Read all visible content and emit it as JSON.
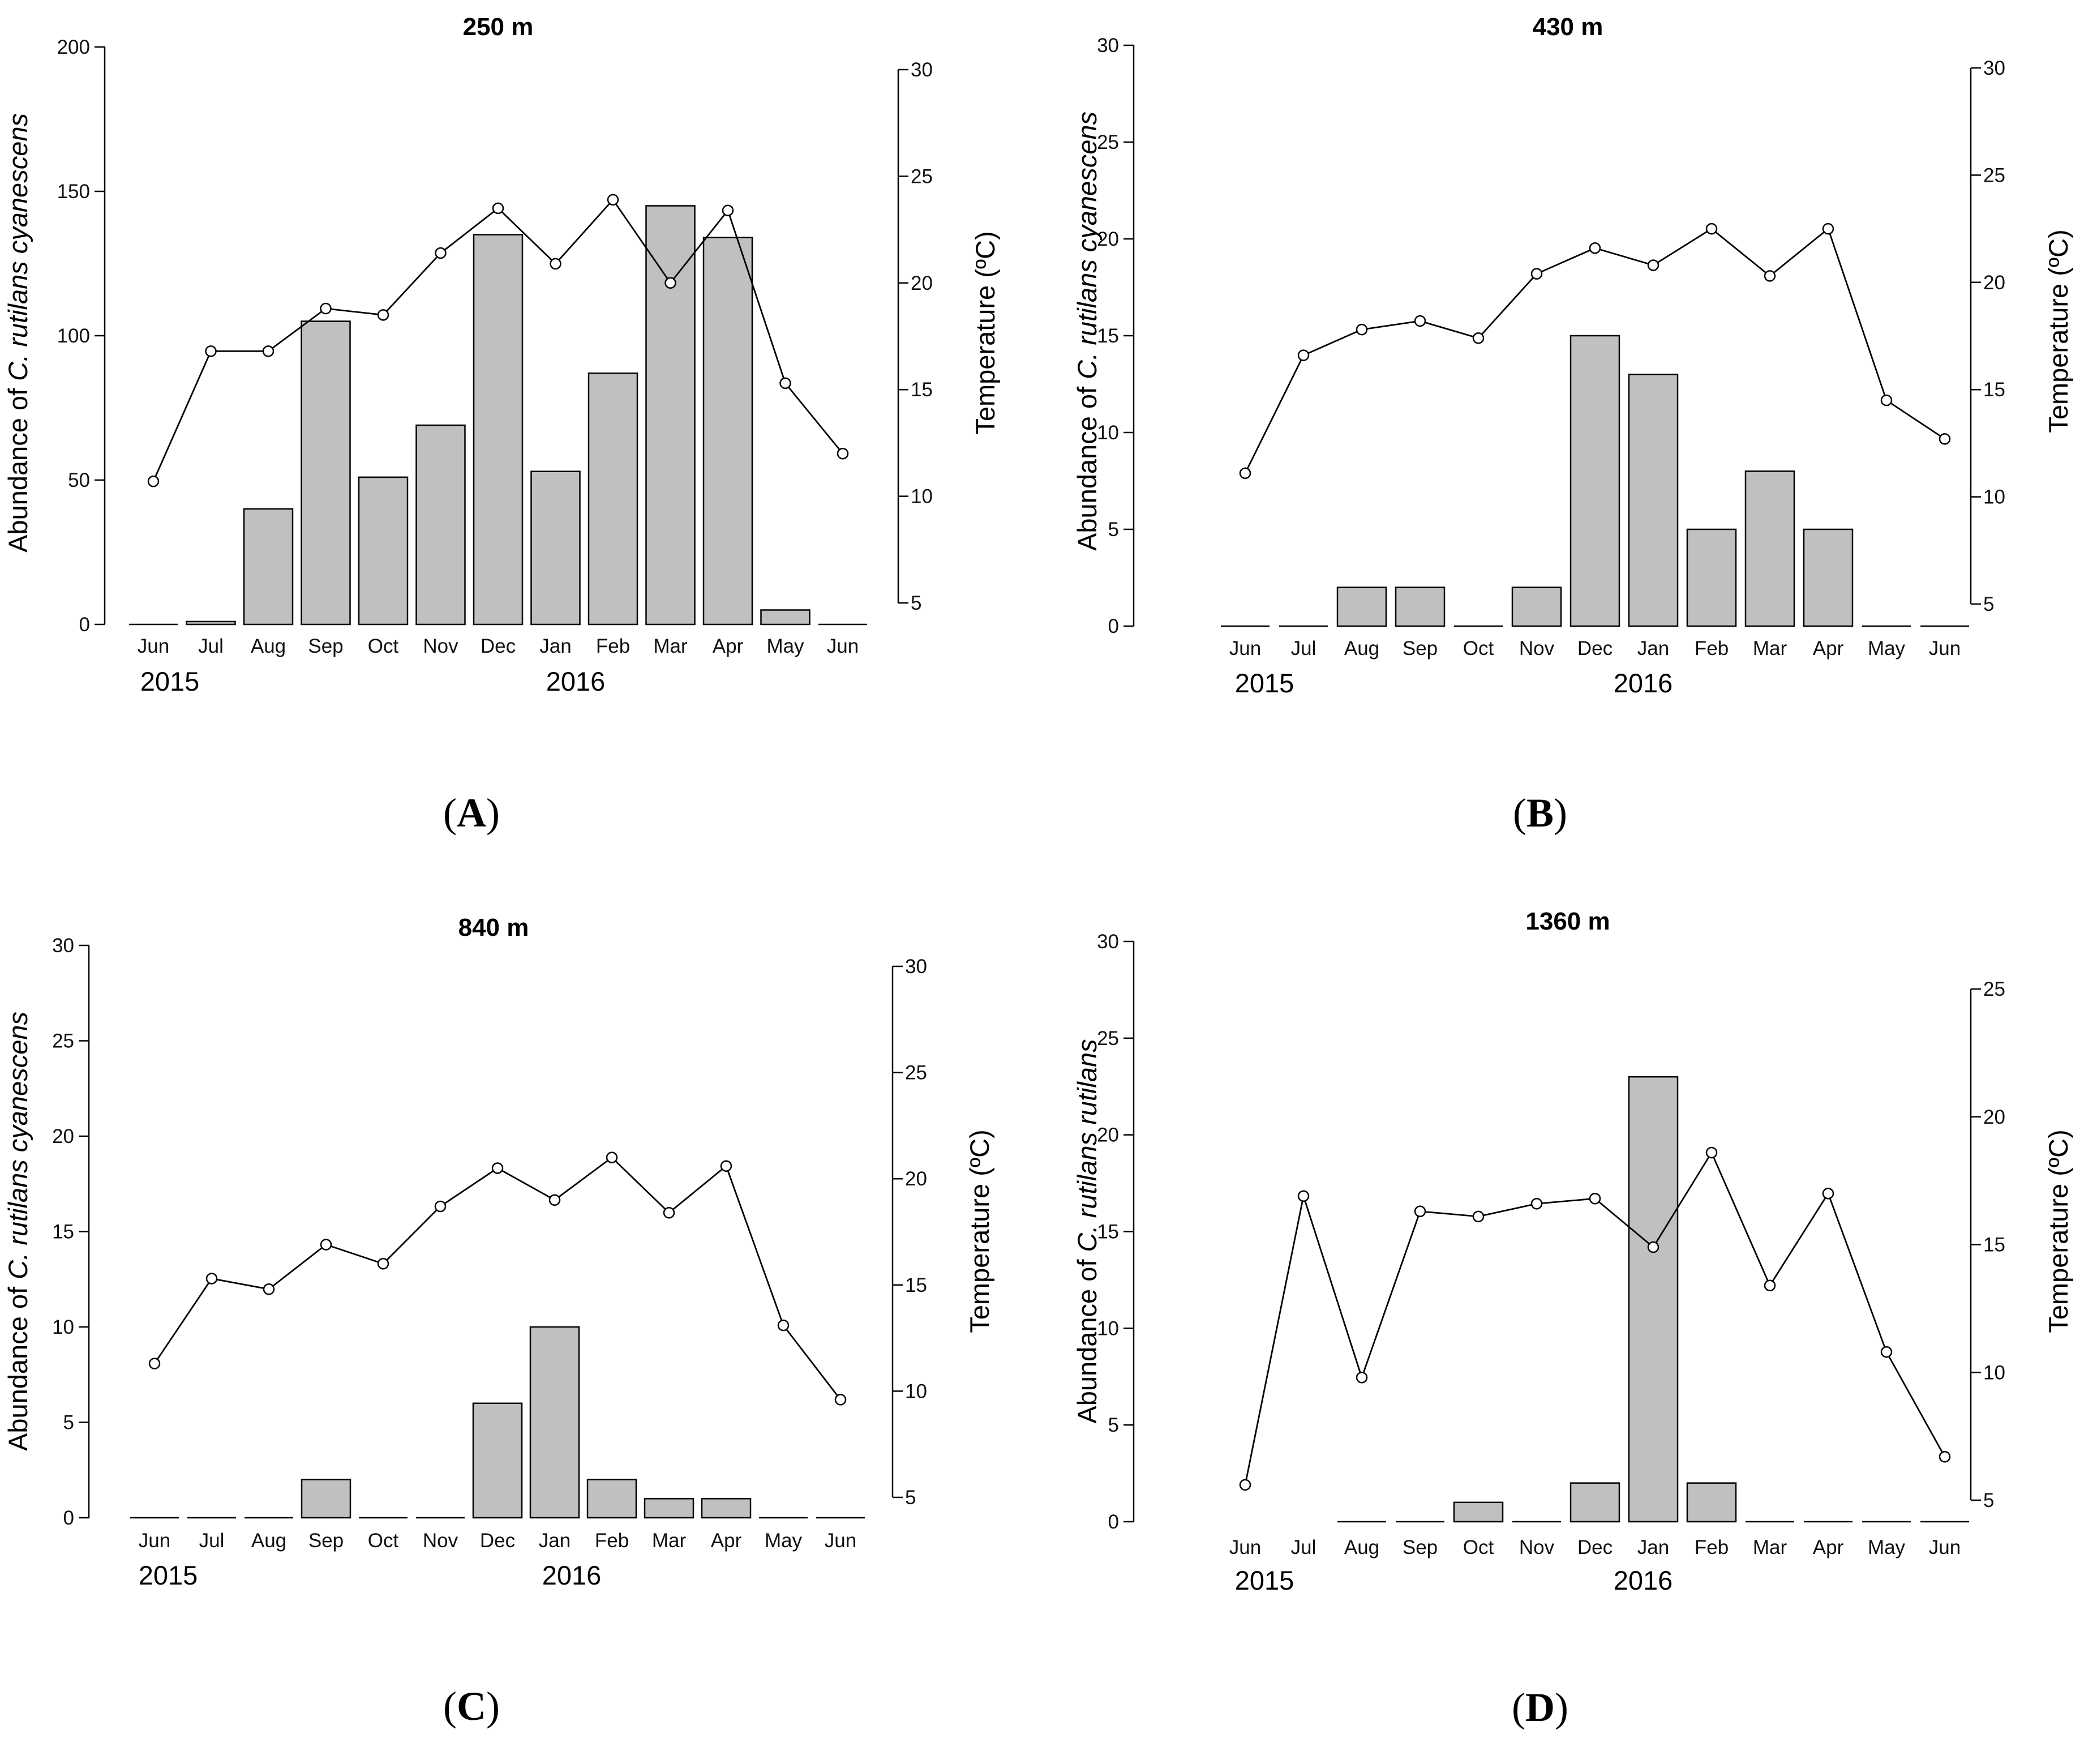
{
  "chart_data": [
    {
      "type": "bar",
      "panel_label": "A",
      "title": "250 m",
      "ylabel_prefix": "Abundance of ",
      "ylabel_species": "C. rutilans cyanescens",
      "y2label": "Temperature (ºC)",
      "categories": [
        "Jun",
        "Jul",
        "Aug",
        "Sep",
        "Oct",
        "Nov",
        "Dec",
        "Jan",
        "Feb",
        "Mar",
        "Apr",
        "May",
        "Jun"
      ],
      "years": [
        "2015",
        "2016"
      ],
      "ylim": [
        0,
        200
      ],
      "yticks": [
        "0",
        "50",
        "100",
        "150",
        "200"
      ],
      "y2lim": [
        5,
        30
      ],
      "y2ticks": [
        "5",
        "10",
        "15",
        "20",
        "25",
        "30"
      ],
      "series": [
        {
          "name": "Abundance",
          "kind": "bar",
          "values": [
            0,
            1,
            40,
            105,
            51,
            69,
            135,
            53,
            87,
            145,
            134,
            5,
            0
          ]
        },
        {
          "name": "Temperature",
          "kind": "line",
          "values": [
            10.7,
            16.8,
            16.8,
            18.8,
            18.5,
            21.4,
            23.5,
            20.9,
            23.9,
            20.0,
            23.4,
            15.3,
            12.0
          ]
        }
      ]
    },
    {
      "type": "bar",
      "panel_label": "B",
      "title": "430 m",
      "ylabel_prefix": "Abundance of ",
      "ylabel_species": "C. rutilans cyanescens",
      "y2label": "Temperature (ºC)",
      "categories": [
        "Jun",
        "Jul",
        "Aug",
        "Sep",
        "Oct",
        "Nov",
        "Dec",
        "Jan",
        "Feb",
        "Mar",
        "Apr",
        "May",
        "Jun"
      ],
      "years": [
        "2015",
        "2016"
      ],
      "ylim": [
        0,
        30
      ],
      "yticks": [
        "0",
        "5",
        "10",
        "15",
        "20",
        "25",
        "30"
      ],
      "y2lim": [
        5,
        30
      ],
      "y2ticks": [
        "5",
        "10",
        "15",
        "20",
        "25",
        "30"
      ],
      "series": [
        {
          "name": "Abundance",
          "kind": "bar",
          "values": [
            0,
            0,
            2,
            2,
            0,
            2,
            15,
            13,
            5,
            8,
            5,
            0,
            0
          ]
        },
        {
          "name": "Temperature",
          "kind": "line",
          "values": [
            11.1,
            16.6,
            17.8,
            18.2,
            17.4,
            20.4,
            21.6,
            20.8,
            22.5,
            20.3,
            22.5,
            14.5,
            12.7
          ]
        }
      ]
    },
    {
      "type": "bar",
      "panel_label": "C",
      "title": "840 m",
      "ylabel_prefix": "Abundance of ",
      "ylabel_species": "C. rutilans cyanescens",
      "y2label": "Temperature (ºC)",
      "categories": [
        "Jun",
        "Jul",
        "Aug",
        "Sep",
        "Oct",
        "Nov",
        "Dec",
        "Jan",
        "Feb",
        "Mar",
        "Apr",
        "May",
        "Jun"
      ],
      "years": [
        "2015",
        "2016"
      ],
      "ylim": [
        0,
        30
      ],
      "yticks": [
        "0",
        "5",
        "10",
        "15",
        "20",
        "25",
        "30"
      ],
      "y2lim": [
        5,
        30
      ],
      "y2ticks": [
        "5",
        "10",
        "15",
        "20",
        "25",
        "30"
      ],
      "series": [
        {
          "name": "Abundance",
          "kind": "bar",
          "values": [
            0,
            0,
            0,
            2,
            0,
            0,
            6,
            10,
            2,
            1,
            1,
            0,
            0
          ]
        },
        {
          "name": "Temperature",
          "kind": "line",
          "values": [
            11.3,
            15.3,
            14.8,
            16.9,
            16.0,
            18.7,
            20.5,
            19.0,
            21.0,
            18.4,
            20.6,
            13.1,
            9.6
          ]
        }
      ]
    },
    {
      "type": "bar",
      "panel_label": "D",
      "title": "1360 m",
      "ylabel_prefix": "Abundance of ",
      "ylabel_species": "C. rutilans rutilans",
      "y2label": "Temperature (ºC)",
      "categories": [
        "Jun",
        "Jul",
        "Aug",
        "Sep",
        "Oct",
        "Nov",
        "Dec",
        "Jan",
        "Feb",
        "Mar",
        "Apr",
        "May",
        "Jun"
      ],
      "years": [
        "2015",
        "2016"
      ],
      "ylim": [
        0,
        30
      ],
      "yticks": [
        "0",
        "5",
        "10",
        "15",
        "20",
        "25",
        "30"
      ],
      "y2lim": [
        5,
        25
      ],
      "y2ticks": [
        "5",
        "10",
        "15",
        "20",
        "25"
      ],
      "series": [
        {
          "name": "Abundance",
          "kind": "bar",
          "values": [
            null,
            null,
            0,
            0,
            1,
            0,
            2,
            23,
            2,
            0,
            0,
            0,
            0
          ]
        },
        {
          "name": "Temperature",
          "kind": "line",
          "values": [
            5.6,
            16.9,
            9.8,
            16.3,
            16.1,
            16.6,
            16.8,
            14.9,
            18.6,
            13.4,
            17.0,
            10.8,
            6.7
          ]
        }
      ]
    }
  ]
}
